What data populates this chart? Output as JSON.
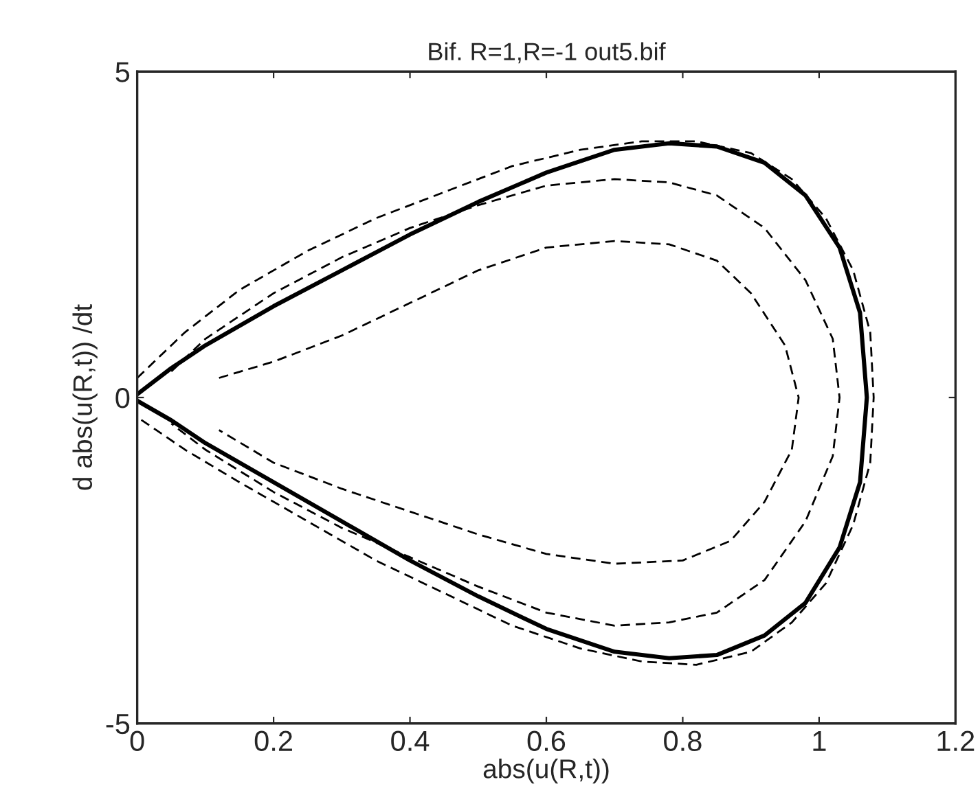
{
  "chart_data": {
    "type": "line",
    "title": "Bif. R=1,R=-1 out5.bif",
    "xlabel": "abs(u(R,t))",
    "ylabel": "d abs(u(R,t)) /dt",
    "xlim": [
      0,
      1.2
    ],
    "xticks": [
      0,
      0.2,
      0.4,
      0.6,
      0.8,
      1,
      1.2
    ],
    "ylim": [
      -5,
      5
    ],
    "yticks": [
      {
        "value": -5,
        "label": "-5"
      },
      0,
      5
    ],
    "grid": false,
    "legend": false,
    "marker": "none",
    "series": [
      {
        "color": "#000000",
        "line_style": "dashed",
        "x": [
          0,
          0.07,
          0.15,
          0.25,
          0.35,
          0.45,
          0.55,
          0.65,
          0.74,
          0.82,
          0.9,
          0.96,
          1.01,
          1.05,
          1.075,
          1.08,
          1.075,
          1.05,
          1.01,
          0.96,
          0.9,
          0.82,
          0.74,
          0.65,
          0.55,
          0.45,
          0.35,
          0.25,
          0.15,
          0.07,
          0
        ],
        "values": [
          0.3,
          1.0,
          1.65,
          2.25,
          2.75,
          3.15,
          3.55,
          3.8,
          3.93,
          3.93,
          3.75,
          3.35,
          2.75,
          1.95,
          1.0,
          0,
          -1.0,
          -1.95,
          -2.85,
          -3.45,
          -3.9,
          -4.1,
          -4.05,
          -3.85,
          -3.5,
          -3.0,
          -2.5,
          -1.9,
          -1.3,
          -0.8,
          -0.3
        ]
      },
      {
        "color": "#000000",
        "line_style": "dashed",
        "x": [
          0.05,
          0.1,
          0.2,
          0.3,
          0.4,
          0.5,
          0.6,
          0.7,
          0.78,
          0.85,
          0.92,
          0.98,
          1.02,
          1.03,
          1.02,
          0.98,
          0.92,
          0.85,
          0.78,
          0.7,
          0.6,
          0.5,
          0.4,
          0.3,
          0.2,
          0.1,
          0.05
        ],
        "values": [
          0.4,
          0.9,
          1.6,
          2.15,
          2.6,
          2.95,
          3.25,
          3.35,
          3.3,
          3.1,
          2.6,
          1.8,
          0.9,
          0,
          -0.9,
          -1.9,
          -2.8,
          -3.3,
          -3.45,
          -3.5,
          -3.3,
          -2.9,
          -2.45,
          -2.0,
          -1.45,
          -0.8,
          -0.4
        ]
      },
      {
        "color": "#000000",
        "line_style": "dashed",
        "x": [
          0.12,
          0.2,
          0.3,
          0.4,
          0.5,
          0.6,
          0.7,
          0.78,
          0.85,
          0.9,
          0.95,
          0.97,
          0.96,
          0.92,
          0.87,
          0.8,
          0.7,
          0.6,
          0.5,
          0.4,
          0.3,
          0.2,
          0.12
        ],
        "values": [
          0.3,
          0.55,
          0.95,
          1.45,
          1.95,
          2.3,
          2.4,
          2.35,
          2.1,
          1.6,
          0.8,
          0,
          -0.8,
          -1.6,
          -2.2,
          -2.5,
          -2.55,
          -2.4,
          -2.1,
          -1.75,
          -1.4,
          -1.0,
          -0.5
        ]
      },
      {
        "color": "#000000",
        "line_style": "solid",
        "x": [
          0,
          0.05,
          0.1,
          0.2,
          0.3,
          0.4,
          0.5,
          0.6,
          0.7,
          0.78,
          0.85,
          0.92,
          0.98,
          1.03,
          1.06,
          1.07,
          1.06,
          1.03,
          0.98,
          0.92,
          0.85,
          0.78,
          0.7,
          0.6,
          0.5,
          0.4,
          0.3,
          0.2,
          0.1,
          0.05,
          0
        ],
        "values": [
          0.05,
          0.45,
          0.8,
          1.4,
          1.95,
          2.5,
          3.0,
          3.45,
          3.8,
          3.9,
          3.85,
          3.6,
          3.1,
          2.3,
          1.3,
          0,
          -1.3,
          -2.3,
          -3.15,
          -3.65,
          -3.95,
          -4.0,
          -3.9,
          -3.55,
          -3.05,
          -2.5,
          -1.9,
          -1.3,
          -0.7,
          -0.35,
          -0.05
        ]
      }
    ]
  }
}
